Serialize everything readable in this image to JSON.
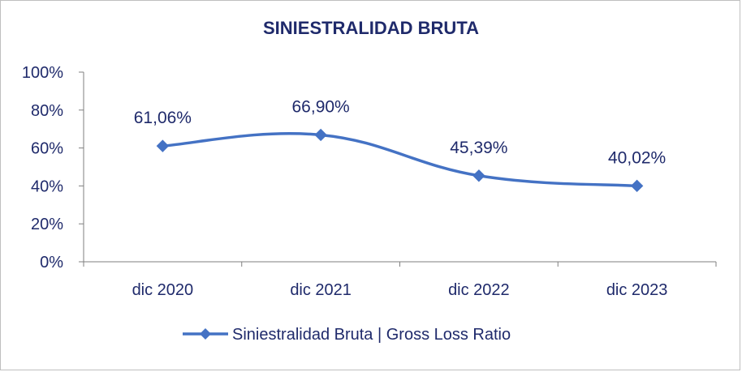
{
  "chart_data": {
    "type": "line",
    "title": "SINIESTRALIDAD BRUTA",
    "categories": [
      "dic 2020",
      "dic 2021",
      "dic 2022",
      "dic 2023"
    ],
    "series": [
      {
        "name": "Siniestralidad Bruta | Gross Loss Ratio",
        "values": [
          61.06,
          66.9,
          45.39,
          40.02
        ],
        "labels": [
          "61,06%",
          "66,90%",
          "45,39%",
          "40,02%"
        ],
        "color": "#4472c4",
        "marker": "diamond",
        "smooth": true
      }
    ],
    "ylim": [
      0,
      100
    ],
    "yticks": [
      0,
      20,
      40,
      60,
      80,
      100
    ],
    "ytick_labels": [
      "0%",
      "20%",
      "40%",
      "60%",
      "80%",
      "100%"
    ],
    "grid": false,
    "legend_position": "bottom",
    "text_color": "#1f2a6b",
    "axis_color": "#7f7f7f"
  }
}
